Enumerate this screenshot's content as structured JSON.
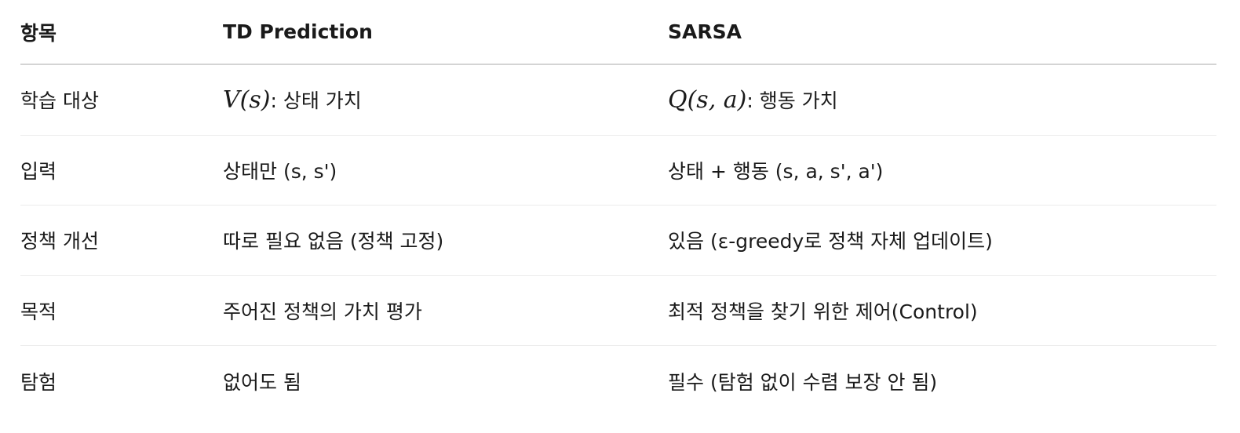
{
  "header": {
    "col1": "항목",
    "col2": "TD Prediction",
    "col3": "SARSA"
  },
  "rows": [
    {
      "label": "학습 대상",
      "td_math": "V(s)",
      "td_text": ": 상태 가치",
      "sarsa_math": "Q(s, a)",
      "sarsa_text": ": 행동 가치"
    },
    {
      "label": "입력",
      "td_text": "상태만 (s, s')",
      "sarsa_text": "상태 + 행동 (s, a, s', a')"
    },
    {
      "label": "정책 개선",
      "td_text": "따로 필요 없음 (정책 고정)",
      "sarsa_text": "있음 (ε-greedy로 정책 자체 업데이트)"
    },
    {
      "label": "목적",
      "td_text": "주어진 정책의 가치 평가",
      "sarsa_text": "최적 정책을 찾기 위한 제어(Control)"
    },
    {
      "label": "탐험",
      "td_text": "없어도 됨",
      "sarsa_text": "필수 (탐험 없이 수렴 보장 안 됨)"
    }
  ]
}
